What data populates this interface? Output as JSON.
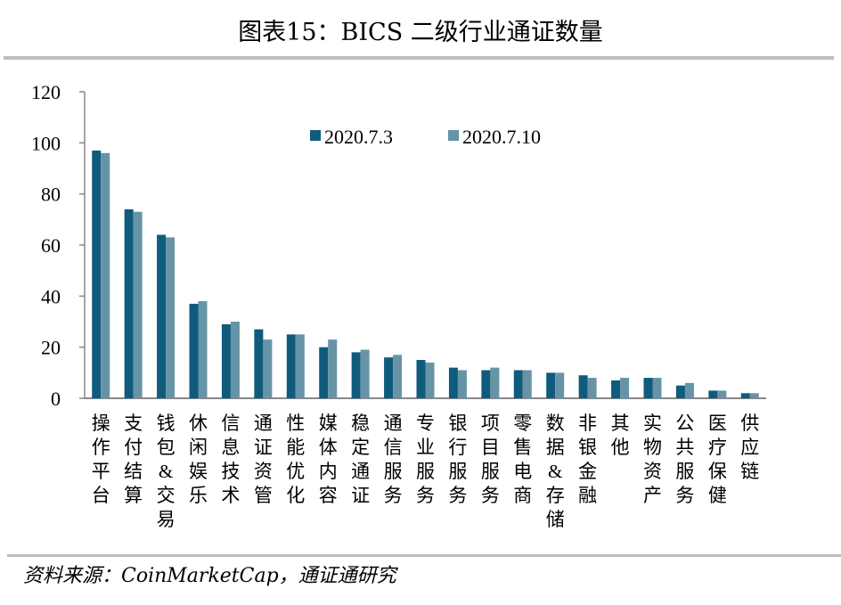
{
  "title": "图表15：BICS 二级行业通证数量",
  "source": "资料来源：CoinMarketCap，通证通研究",
  "colors": {
    "series1": "#0f5b7e",
    "series2": "#6694a6",
    "axis": "#888888"
  },
  "chart_data": {
    "type": "bar",
    "title": "图表15：BICS 二级行业通证数量",
    "xlabel": "",
    "ylabel": "",
    "ylim": [
      0,
      120
    ],
    "yticks": [
      0,
      20,
      40,
      60,
      80,
      100,
      120
    ],
    "grid": false,
    "legend_position": "top-center-inside",
    "categories": [
      "操作平台",
      "支付结算",
      "钱包&交易",
      "休闲娱乐",
      "信息技术",
      "通证资管",
      "性能优化",
      "媒体内容",
      "稳定通证",
      "通信服务",
      "专业服务",
      "银行服务",
      "项目服务",
      "零售电商",
      "数据&存储",
      "非银金融",
      "其他",
      "实物资产",
      "公共服务",
      "医疗保健",
      "供应链"
    ],
    "series": [
      {
        "name": "2020.7.3",
        "values": [
          97,
          74,
          64,
          37,
          29,
          27,
          25,
          20,
          18,
          16,
          15,
          12,
          11,
          11,
          10,
          9,
          7,
          8,
          5,
          3,
          2
        ]
      },
      {
        "name": "2020.7.10",
        "values": [
          96,
          73,
          63,
          38,
          30,
          23,
          25,
          23,
          19,
          17,
          14,
          11,
          12,
          11,
          10,
          8,
          8,
          8,
          6,
          3,
          2
        ]
      }
    ]
  }
}
